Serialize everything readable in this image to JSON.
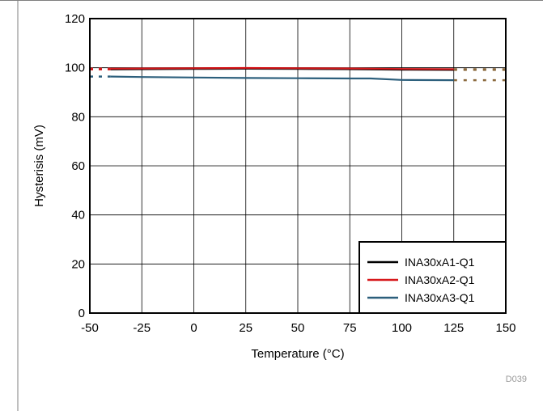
{
  "chart_data": {
    "type": "line",
    "xlabel": "Temperature (°C)",
    "ylabel": "Hysterisis (mV)",
    "xlim": [
      -50,
      150
    ],
    "ylim": [
      0,
      120
    ],
    "xticks": [
      -50,
      -25,
      0,
      25,
      50,
      75,
      100,
      125,
      150
    ],
    "yticks": [
      0,
      20,
      40,
      60,
      80,
      100,
      120
    ],
    "grid": true,
    "legend_position": "bottom-right",
    "figure_code": "D039",
    "series": [
      {
        "name": "INA30xA1-Q1",
        "color": "#000000",
        "x": [
          -40,
          -25,
          0,
          25,
          50,
          75,
          100,
          125
        ],
        "y": [
          99.3,
          99.4,
          99.5,
          99.6,
          99.5,
          99.4,
          99.2,
          99.1
        ],
        "extrapolated": {
          "x_left": [
            -50,
            -40
          ],
          "y_left": [
            99.3,
            99.3
          ],
          "x_right": [
            125,
            150
          ],
          "y_right": [
            99.1,
            99.1
          ]
        }
      },
      {
        "name": "INA30xA2-Q1",
        "color": "#d7191c",
        "x": [
          -40,
          -25,
          0,
          25,
          50,
          75,
          100,
          125
        ],
        "y": [
          99.6,
          99.7,
          99.8,
          99.9,
          99.8,
          99.7,
          99.5,
          99.4
        ],
        "extrapolated": {
          "x_left": [
            -50,
            -40
          ],
          "y_left": [
            99.6,
            99.6
          ],
          "x_right": [
            125,
            150
          ],
          "y_right": [
            99.4,
            99.4
          ]
        }
      },
      {
        "name": "INA30xA3-Q1",
        "color": "#2c5f7c",
        "x": [
          -40,
          -25,
          0,
          25,
          50,
          75,
          85,
          100,
          125
        ],
        "y": [
          96.4,
          96.2,
          96.0,
          95.8,
          95.7,
          95.6,
          95.6,
          95.0,
          94.9
        ],
        "extrapolated": {
          "x_left": [
            -50,
            -40
          ],
          "y_left": [
            96.4,
            96.4
          ],
          "x_right": [
            125,
            150
          ],
          "y_right": [
            94.9,
            94.9
          ]
        }
      }
    ]
  }
}
